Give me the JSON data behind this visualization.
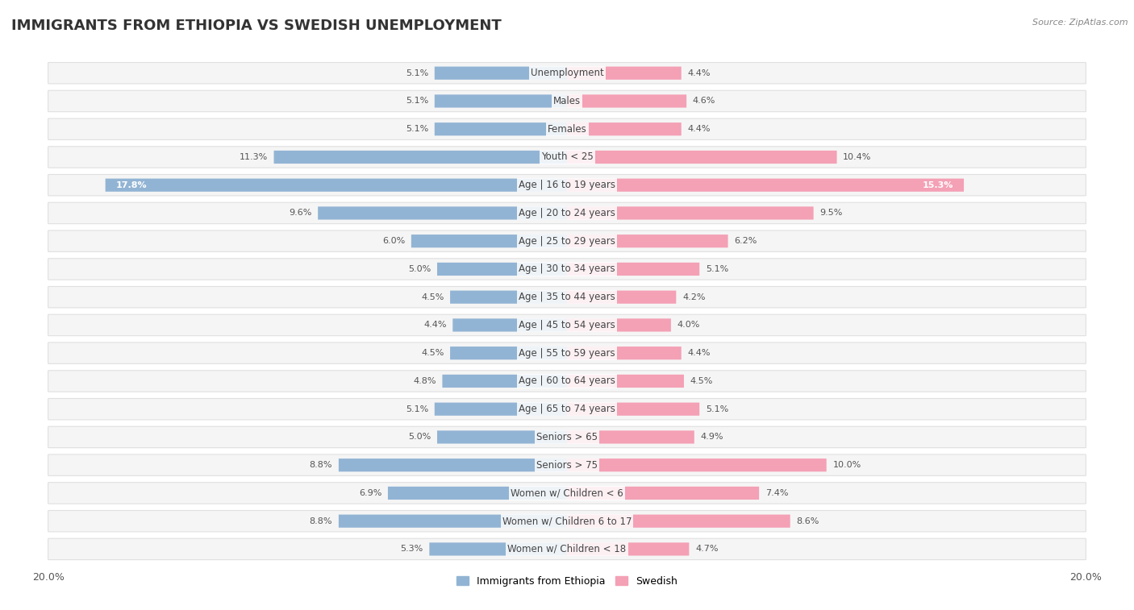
{
  "title": "IMMIGRANTS FROM ETHIOPIA VS SWEDISH UNEMPLOYMENT",
  "source": "Source: ZipAtlas.com",
  "categories": [
    "Unemployment",
    "Males",
    "Females",
    "Youth < 25",
    "Age | 16 to 19 years",
    "Age | 20 to 24 years",
    "Age | 25 to 29 years",
    "Age | 30 to 34 years",
    "Age | 35 to 44 years",
    "Age | 45 to 54 years",
    "Age | 55 to 59 years",
    "Age | 60 to 64 years",
    "Age | 65 to 74 years",
    "Seniors > 65",
    "Seniors > 75",
    "Women w/ Children < 6",
    "Women w/ Children 6 to 17",
    "Women w/ Children < 18"
  ],
  "left_values": [
    5.1,
    5.1,
    5.1,
    11.3,
    17.8,
    9.6,
    6.0,
    5.0,
    4.5,
    4.4,
    4.5,
    4.8,
    5.1,
    5.0,
    8.8,
    6.9,
    8.8,
    5.3
  ],
  "right_values": [
    4.4,
    4.6,
    4.4,
    10.4,
    15.3,
    9.5,
    6.2,
    5.1,
    4.2,
    4.0,
    4.4,
    4.5,
    5.1,
    4.9,
    10.0,
    7.4,
    8.6,
    4.7
  ],
  "left_color": "#92b4d4",
  "right_color": "#f4a0b5",
  "left_color_large": "#7aa0c8",
  "right_color_large": "#f07898",
  "left_label": "Immigrants from Ethiopia",
  "right_label": "Swedish",
  "axis_limit": 20.0,
  "background_color": "#ffffff",
  "row_bg_color": "#f5f5f5",
  "row_border_color": "#e0e0e0",
  "title_fontsize": 13,
  "label_fontsize": 8.5,
  "value_fontsize": 8
}
